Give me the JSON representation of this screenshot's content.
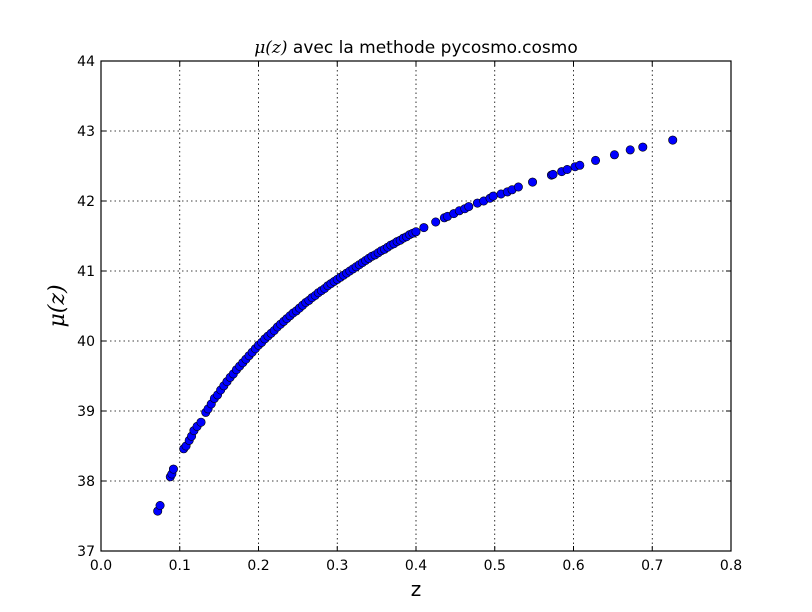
{
  "chart_data": {
    "type": "scatter",
    "title_math": "μ(z)",
    "title_text": " avec la methode pycosmo.cosmo",
    "xlabel": "z",
    "ylabel": "μ(z)",
    "xlim": [
      0.0,
      0.8
    ],
    "ylim": [
      37,
      44
    ],
    "grid": true,
    "marker_color": "#0000ff",
    "x_ticks": [
      "0.0",
      "0.1",
      "0.2",
      "0.3",
      "0.4",
      "0.5",
      "0.6",
      "0.7",
      "0.8"
    ],
    "y_ticks": [
      "37",
      "38",
      "39",
      "40",
      "41",
      "42",
      "43",
      "44"
    ],
    "series": [
      {
        "points": [
          [
            0.072,
            37.57
          ],
          [
            0.075,
            37.65
          ],
          [
            0.088,
            38.06
          ],
          [
            0.09,
            38.1
          ],
          [
            0.092,
            38.17
          ],
          [
            0.105,
            38.46
          ],
          [
            0.108,
            38.5
          ],
          [
            0.112,
            38.58
          ],
          [
            0.115,
            38.64
          ],
          [
            0.118,
            38.72
          ],
          [
            0.122,
            38.78
          ],
          [
            0.127,
            38.84
          ],
          [
            0.133,
            38.98
          ],
          [
            0.136,
            39.03
          ],
          [
            0.14,
            39.1
          ],
          [
            0.144,
            39.18
          ],
          [
            0.148,
            39.23
          ],
          [
            0.152,
            39.3
          ],
          [
            0.156,
            39.36
          ],
          [
            0.16,
            39.42
          ],
          [
            0.164,
            39.48
          ],
          [
            0.168,
            39.53
          ],
          [
            0.172,
            39.59
          ],
          [
            0.176,
            39.64
          ],
          [
            0.18,
            39.69
          ],
          [
            0.184,
            39.74
          ],
          [
            0.188,
            39.79
          ],
          [
            0.192,
            39.84
          ],
          [
            0.196,
            39.89
          ],
          [
            0.2,
            39.94
          ],
          [
            0.204,
            39.98
          ],
          [
            0.208,
            40.03
          ],
          [
            0.212,
            40.07
          ],
          [
            0.216,
            40.11
          ],
          [
            0.22,
            40.15
          ],
          [
            0.224,
            40.2
          ],
          [
            0.228,
            40.24
          ],
          [
            0.232,
            40.28
          ],
          [
            0.236,
            40.32
          ],
          [
            0.24,
            40.36
          ],
          [
            0.244,
            40.4
          ],
          [
            0.248,
            40.43
          ],
          [
            0.252,
            40.47
          ],
          [
            0.256,
            40.51
          ],
          [
            0.26,
            40.55
          ],
          [
            0.264,
            40.58
          ],
          [
            0.268,
            40.62
          ],
          [
            0.272,
            40.65
          ],
          [
            0.276,
            40.69
          ],
          [
            0.28,
            40.72
          ],
          [
            0.284,
            40.75
          ],
          [
            0.288,
            40.79
          ],
          [
            0.292,
            40.82
          ],
          [
            0.296,
            40.85
          ],
          [
            0.3,
            40.88
          ],
          [
            0.304,
            40.91
          ],
          [
            0.308,
            40.94
          ],
          [
            0.312,
            40.97
          ],
          [
            0.316,
            41.0
          ],
          [
            0.32,
            41.03
          ],
          [
            0.324,
            41.06
          ],
          [
            0.328,
            41.09
          ],
          [
            0.332,
            41.12
          ],
          [
            0.336,
            41.15
          ],
          [
            0.34,
            41.18
          ],
          [
            0.344,
            41.21
          ],
          [
            0.348,
            41.23
          ],
          [
            0.352,
            41.26
          ],
          [
            0.356,
            41.29
          ],
          [
            0.36,
            41.31
          ],
          [
            0.364,
            41.34
          ],
          [
            0.368,
            41.37
          ],
          [
            0.372,
            41.39
          ],
          [
            0.376,
            41.42
          ],
          [
            0.38,
            41.44
          ],
          [
            0.384,
            41.47
          ],
          [
            0.388,
            41.49
          ],
          [
            0.392,
            41.52
          ],
          [
            0.396,
            41.54
          ],
          [
            0.4,
            41.56
          ],
          [
            0.41,
            41.62
          ],
          [
            0.425,
            41.7
          ],
          [
            0.436,
            41.76
          ],
          [
            0.44,
            41.78
          ],
          [
            0.448,
            41.82
          ],
          [
            0.455,
            41.86
          ],
          [
            0.462,
            41.89
          ],
          [
            0.467,
            41.92
          ],
          [
            0.478,
            41.97
          ],
          [
            0.486,
            42.0
          ],
          [
            0.494,
            42.04
          ],
          [
            0.498,
            42.07
          ],
          [
            0.508,
            42.1
          ],
          [
            0.516,
            42.13
          ],
          [
            0.522,
            42.16
          ],
          [
            0.53,
            42.2
          ],
          [
            0.548,
            42.27
          ],
          [
            0.572,
            42.37
          ],
          [
            0.574,
            42.38
          ],
          [
            0.585,
            42.42
          ],
          [
            0.592,
            42.45
          ],
          [
            0.602,
            42.49
          ],
          [
            0.608,
            42.51
          ],
          [
            0.628,
            42.58
          ],
          [
            0.652,
            42.66
          ],
          [
            0.672,
            42.73
          ],
          [
            0.688,
            42.77
          ],
          [
            0.726,
            42.87
          ]
        ]
      }
    ]
  }
}
